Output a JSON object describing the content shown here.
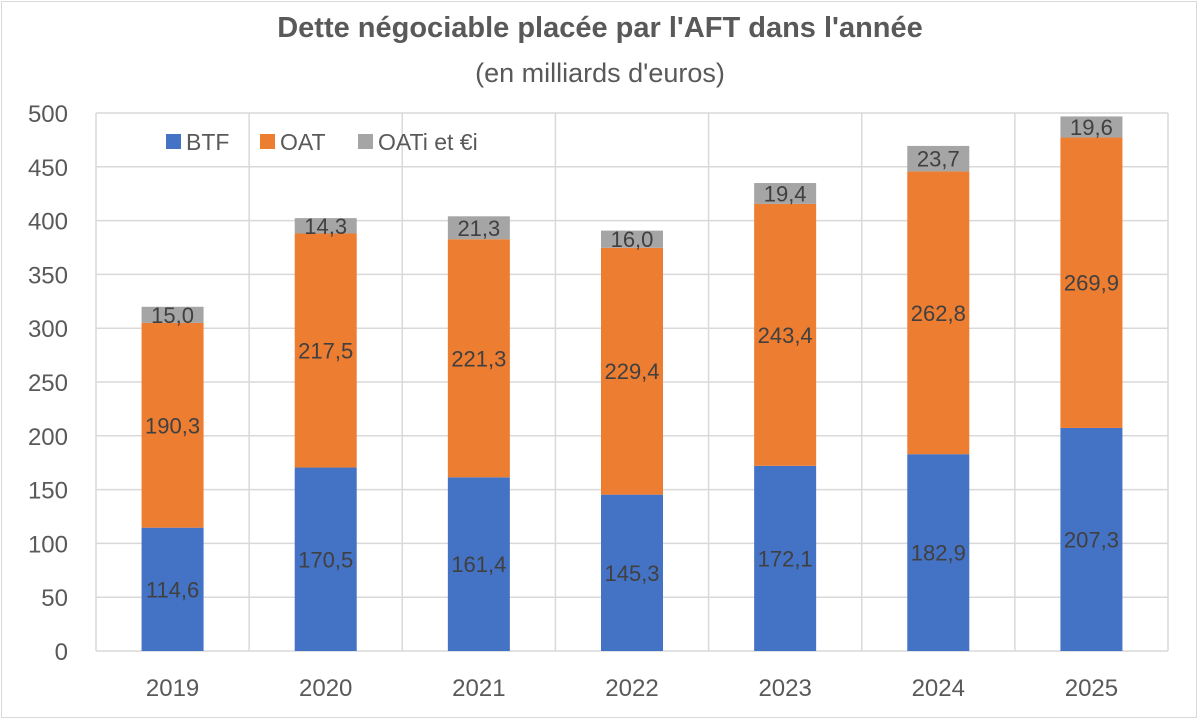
{
  "chart_data": {
    "type": "bar",
    "stacked": true,
    "title": "Dette négociable placée par l'AFT dans l'année",
    "subtitle": "(en milliards d'euros)",
    "xlabel": "",
    "ylabel": "",
    "ylim": [
      0,
      500
    ],
    "yticks": [
      0,
      50,
      100,
      150,
      200,
      250,
      300,
      350,
      400,
      450,
      500
    ],
    "grid": true,
    "legend_position": "top-left",
    "categories": [
      "2019",
      "2020",
      "2021",
      "2022",
      "2023",
      "2024",
      "2025"
    ],
    "series": [
      {
        "name": "BTF",
        "color": "#4472c4",
        "values": [
          114.6,
          170.5,
          161.4,
          145.3,
          172.1,
          182.9,
          207.3
        ],
        "labels": [
          "114,6",
          "170,5",
          "161,4",
          "145,3",
          "172,1",
          "182,9",
          "207,3"
        ]
      },
      {
        "name": "OAT",
        "color": "#ed7d31",
        "values": [
          190.3,
          217.5,
          221.3,
          229.4,
          243.4,
          262.8,
          269.9
        ],
        "labels": [
          "190,3",
          "217,5",
          "221,3",
          "229,4",
          "243,4",
          "262,8",
          "269,9"
        ]
      },
      {
        "name": "OATi et €i",
        "color": "#a5a5a5",
        "values": [
          15.0,
          14.3,
          21.3,
          16.0,
          19.4,
          23.7,
          19.6
        ],
        "labels": [
          "15,0",
          "14,3",
          "21,3",
          "16,0",
          "19,4",
          "23,7",
          "19,6"
        ]
      }
    ]
  }
}
